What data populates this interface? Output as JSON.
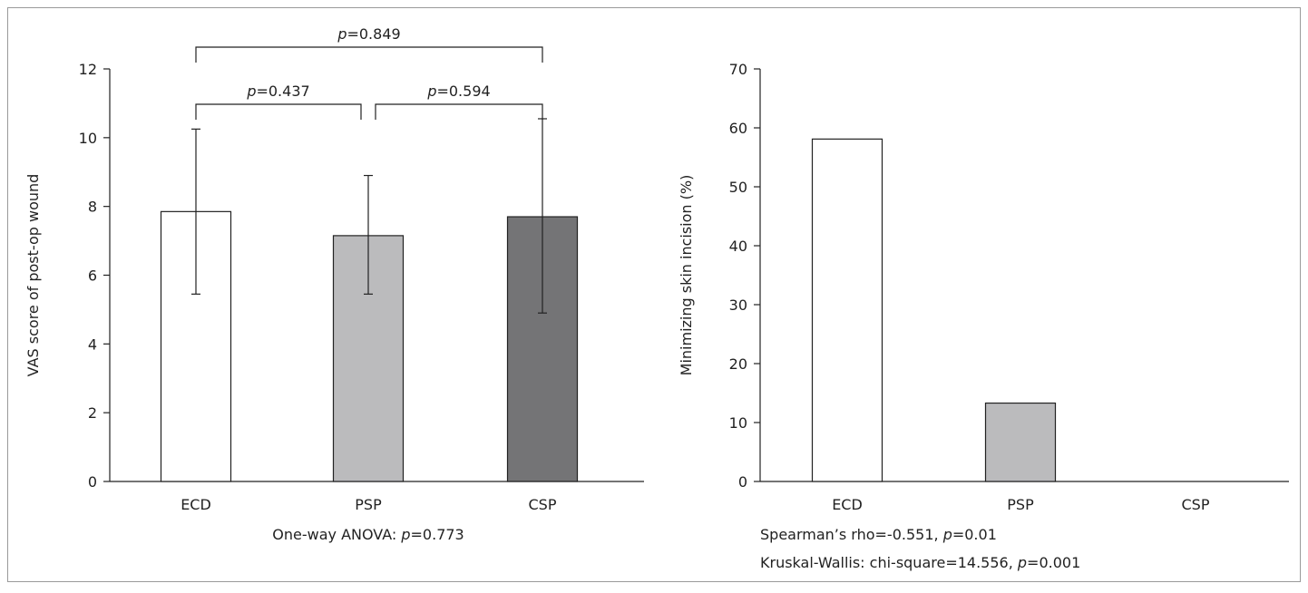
{
  "chart_data": [
    {
      "type": "bar",
      "title": "",
      "xlabel": "",
      "ylabel": "VAS score of post-op wound",
      "categories": [
        "ECD",
        "PSP",
        "CSP"
      ],
      "values": [
        7.85,
        7.15,
        7.7
      ],
      "error_upper": [
        10.25,
        8.9,
        10.55
      ],
      "error_lower": [
        5.45,
        5.45,
        4.9
      ],
      "colors": [
        "#ffffff",
        "#bbbbbd",
        "#747476"
      ],
      "ylim": [
        0,
        12
      ],
      "yticks": [
        "0",
        "2",
        "4",
        "6",
        "8",
        "10",
        "12"
      ],
      "comparisons": [
        {
          "from": 0,
          "to": 1,
          "p_label": "p",
          "p_value": "=0.437",
          "level": 0
        },
        {
          "from": 1,
          "to": 2,
          "p_label": "p",
          "p_value": "=0.594",
          "level": 0
        },
        {
          "from": 0,
          "to": 2,
          "p_label": "p",
          "p_value": "=0.849",
          "level": 1
        }
      ],
      "footnotes": [
        {
          "prefix": "One-way ANOVA: ",
          "p_label": "p",
          "suffix": "=0.773"
        }
      ]
    },
    {
      "type": "bar",
      "title": "",
      "xlabel": "",
      "ylabel": "Minimizing skin incision (%)",
      "categories": [
        "ECD",
        "PSP",
        "CSP"
      ],
      "values": [
        58.1,
        13.3,
        0
      ],
      "colors": [
        "#ffffff",
        "#bbbbbd",
        "#747476"
      ],
      "ylim": [
        0,
        70
      ],
      "yticks": [
        "0",
        "10",
        "20",
        "30",
        "40",
        "50",
        "60",
        "70"
      ],
      "footnotes": [
        {
          "prefix": "Spearman’s rho=-0.551, ",
          "p_label": "p",
          "suffix": "=0.01"
        },
        {
          "prefix": "Kruskal-Wallis: chi-square=14.556, ",
          "p_label": "p",
          "suffix": "=0.001"
        }
      ]
    }
  ]
}
